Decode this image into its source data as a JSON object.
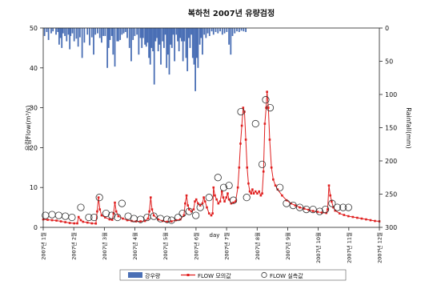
{
  "chart_data": {
    "type": "bar+line+scatter",
    "title": "복하천 2007년 유량검정",
    "xlabel": "day",
    "ylabel": "유량Flow(m³/s)",
    "y2label": "Rainfall(mm)",
    "ylim": [
      0,
      50
    ],
    "y2lim": [
      300,
      0
    ],
    "yticks": [
      "0",
      "10",
      "20",
      "30",
      "40",
      "50"
    ],
    "y2ticks": [
      "0",
      "50",
      "100",
      "150",
      "200",
      "250",
      "300"
    ],
    "xticks": [
      "2007년 1월",
      "2007년 2월",
      "2007년 3월",
      "2007년 4월",
      "2007년 5월",
      "2007년 6월",
      "2007년 7월",
      "2007년 8월",
      "2007년 9월",
      "2007년 10월",
      "2007년 11월",
      "2007년 12월"
    ],
    "legend_placement": "bottom",
    "grid": false,
    "colors": {
      "rainfall": "#4a6fb5",
      "simulated": "#e02020",
      "observed": "#333333"
    },
    "series": [
      {
        "name": "강우량",
        "kind": "bar",
        "axis": "right",
        "points": [
          [
            0.3,
            12
          ],
          [
            0.8,
            6
          ],
          [
            1.2,
            18
          ],
          [
            1.8,
            8
          ],
          [
            2.2,
            5
          ],
          [
            2.9,
            10
          ],
          [
            3.3,
            6
          ],
          [
            3.6,
            25
          ],
          [
            3.9,
            15
          ],
          [
            4.2,
            30
          ],
          [
            4.5,
            8
          ],
          [
            4.9,
            12
          ],
          [
            5.3,
            20
          ],
          [
            5.7,
            10
          ],
          [
            6.0,
            32
          ],
          [
            6.2,
            12
          ],
          [
            6.6,
            8
          ],
          [
            7.0,
            20
          ],
          [
            7.5,
            16
          ],
          [
            7.9,
            28
          ],
          [
            8.3,
            14
          ],
          [
            8.8,
            45
          ],
          [
            9.3,
            22
          ],
          [
            10.0,
            10
          ],
          [
            10.5,
            26
          ],
          [
            11.0,
            14
          ],
          [
            11.4,
            40
          ],
          [
            11.8,
            10
          ],
          [
            12.3,
            8
          ],
          [
            12.8,
            15
          ],
          [
            13.2,
            22
          ],
          [
            13.6,
            12
          ],
          [
            14.0,
            12
          ],
          [
            14.5,
            60
          ],
          [
            14.8,
            30
          ],
          [
            15.1,
            18
          ],
          [
            15.5,
            12
          ],
          [
            15.8,
            40
          ],
          [
            16.2,
            58
          ],
          [
            16.7,
            20
          ],
          [
            17.0,
            20
          ],
          [
            17.4,
            18
          ],
          [
            17.8,
            10
          ],
          [
            18.2,
            8
          ],
          [
            18.6,
            6
          ],
          [
            19.0,
            15
          ],
          [
            19.5,
            30
          ],
          [
            19.9,
            50
          ],
          [
            20.3,
            18
          ],
          [
            20.7,
            12
          ],
          [
            21.2,
            10
          ],
          [
            21.6,
            40
          ],
          [
            22.0,
            15
          ],
          [
            22.3,
            30
          ],
          [
            22.6,
            15
          ],
          [
            23.0,
            25
          ],
          [
            23.3,
            28
          ],
          [
            23.6,
            22
          ],
          [
            23.9,
            45
          ],
          [
            24.2,
            55
          ],
          [
            24.5,
            30
          ],
          [
            24.8,
            35
          ],
          [
            25.1,
            85
          ],
          [
            25.4,
            20
          ],
          [
            25.7,
            15
          ],
          [
            26.0,
            35
          ],
          [
            26.3,
            25
          ],
          [
            26.6,
            55
          ],
          [
            27.0,
            20
          ],
          [
            27.3,
            30
          ],
          [
            27.6,
            10
          ],
          [
            27.9,
            60
          ],
          [
            28.2,
            40
          ],
          [
            28.5,
            70
          ],
          [
            28.8,
            25
          ],
          [
            29.1,
            30
          ],
          [
            29.4,
            10
          ],
          [
            29.7,
            50
          ],
          [
            30.1,
            10
          ],
          [
            30.4,
            20
          ],
          [
            30.7,
            35
          ],
          [
            31.0,
            15
          ],
          [
            31.3,
            20
          ],
          [
            31.6,
            50
          ],
          [
            31.9,
            20
          ],
          [
            32.3,
            45
          ],
          [
            32.6,
            65
          ],
          [
            32.9,
            15
          ],
          [
            33.2,
            30
          ],
          [
            33.5,
            10
          ],
          [
            33.8,
            45
          ],
          [
            34.1,
            55
          ],
          [
            34.4,
            95
          ],
          [
            34.7,
            45
          ],
          [
            35.0,
            60
          ],
          [
            35.4,
            25
          ],
          [
            35.7,
            15
          ],
          [
            36.0,
            40
          ],
          [
            36.4,
            10
          ],
          [
            36.8,
            15
          ],
          [
            37.2,
            8
          ],
          [
            37.6,
            12
          ],
          [
            38.1,
            5
          ],
          [
            38.5,
            10
          ],
          [
            39.0,
            6
          ],
          [
            39.5,
            8
          ],
          [
            40.0,
            5
          ],
          [
            40.5,
            10
          ],
          [
            41.0,
            8
          ],
          [
            41.5,
            6
          ],
          [
            42.0,
            25
          ],
          [
            42.4,
            40
          ],
          [
            42.8,
            12
          ],
          [
            43.3,
            8
          ],
          [
            43.8,
            5
          ],
          [
            44.3,
            6
          ],
          [
            44.8,
            4
          ],
          [
            45.3,
            5
          ],
          [
            45.8,
            6
          ]
        ]
      },
      {
        "name": "FLOW 모의값",
        "kind": "line",
        "axis": "left",
        "points": [
          [
            0,
            2.0
          ],
          [
            1,
            1.9
          ],
          [
            2,
            1.8
          ],
          [
            3,
            1.7
          ],
          [
            4,
            1.5
          ],
          [
            5,
            1.3
          ],
          [
            6,
            1.1
          ],
          [
            7,
            1.0
          ],
          [
            7.7,
            1.0
          ],
          [
            8.0,
            2.6
          ],
          [
            8.5,
            1.8
          ],
          [
            9,
            1.4
          ],
          [
            10,
            1.2
          ],
          [
            11,
            1.0
          ],
          [
            11.9,
            0.95
          ],
          [
            12.2,
            4.0
          ],
          [
            12.5,
            7.5
          ],
          [
            12.8,
            4.5
          ],
          [
            13.2,
            3.0
          ],
          [
            14,
            2.5
          ],
          [
            15,
            2.0
          ],
          [
            15.6,
            1.9
          ],
          [
            15.9,
            3.5
          ],
          [
            16.2,
            6.2
          ],
          [
            16.5,
            4.0
          ],
          [
            17,
            2.8
          ],
          [
            18,
            2.2
          ],
          [
            19,
            1.8
          ],
          [
            20,
            1.6
          ],
          [
            21,
            1.5
          ],
          [
            22,
            1.5
          ],
          [
            23,
            1.6
          ],
          [
            23.7,
            2.2
          ],
          [
            24.0,
            4.0
          ],
          [
            24.3,
            7.5
          ],
          [
            24.6,
            4.5
          ],
          [
            25,
            3.0
          ],
          [
            26,
            2.0
          ],
          [
            27,
            1.6
          ],
          [
            28,
            1.4
          ],
          [
            29,
            1.5
          ],
          [
            30,
            1.8
          ],
          [
            31,
            2.0
          ],
          [
            31.8,
            3.0
          ],
          [
            32.1,
            6.0
          ],
          [
            32.4,
            8.0
          ],
          [
            32.7,
            5.5
          ],
          [
            33,
            4.5
          ],
          [
            33.5,
            4.0
          ],
          [
            34,
            4.5
          ],
          [
            34.3,
            6.5
          ],
          [
            34.6,
            7.0
          ],
          [
            35,
            6.0
          ],
          [
            35.5,
            5.5
          ],
          [
            36,
            6.0
          ],
          [
            36.3,
            7.5
          ],
          [
            36.6,
            6.5
          ],
          [
            37,
            5.0
          ],
          [
            37.5,
            3.5
          ],
          [
            38,
            3.0
          ],
          [
            38.3,
            3.5
          ],
          [
            38.5,
            10.0
          ],
          [
            38.8,
            8.0
          ],
          [
            39.2,
            7.0
          ],
          [
            39.6,
            6.0
          ],
          [
            40,
            6.5
          ],
          [
            40.4,
            9.0
          ],
          [
            40.7,
            7.5
          ],
          [
            41,
            6.5
          ],
          [
            41.4,
            7.5
          ],
          [
            41.7,
            8.5
          ],
          [
            42,
            7.0
          ],
          [
            42.5,
            6.0
          ],
          [
            43,
            6.2
          ],
          [
            43.5,
            6.5
          ],
          [
            44,
            10.0
          ],
          [
            44.3,
            15.0
          ],
          [
            44.6,
            21.0
          ],
          [
            44.9,
            25.5
          ],
          [
            45.2,
            30.0
          ],
          [
            45.5,
            29.0
          ],
          [
            45.8,
            22.0
          ],
          [
            46.1,
            15.0
          ],
          [
            46.4,
            11.0
          ],
          [
            46.7,
            9.0
          ],
          [
            47,
            8.5
          ],
          [
            47.3,
            9.5
          ],
          [
            47.6,
            8.5
          ],
          [
            48,
            9.0
          ],
          [
            48.4,
            8.5
          ],
          [
            48.8,
            9.0
          ],
          [
            49.2,
            8.0
          ],
          [
            49.5,
            8.5
          ],
          [
            49.8,
            14.0
          ],
          [
            50.1,
            26.0
          ],
          [
            50.4,
            30.0
          ],
          [
            50.6,
            34.0
          ],
          [
            50.9,
            30.0
          ],
          [
            51.2,
            22.0
          ],
          [
            51.6,
            15.0
          ],
          [
            52,
            12.0
          ],
          [
            52.5,
            10.5
          ],
          [
            53,
            9.5
          ],
          [
            54,
            8.0
          ],
          [
            55,
            6.8
          ],
          [
            56,
            6.0
          ],
          [
            57,
            5.5
          ],
          [
            58,
            5.0
          ],
          [
            59,
            4.7
          ],
          [
            60,
            4.4
          ],
          [
            61,
            4.1
          ],
          [
            62,
            3.9
          ],
          [
            63,
            3.7
          ],
          [
            64,
            3.6
          ],
          [
            64.3,
            4.5
          ],
          [
            64.6,
            10.5
          ],
          [
            64.9,
            8.0
          ],
          [
            65.2,
            6.5
          ],
          [
            65.6,
            5.0
          ],
          [
            66,
            4.2
          ],
          [
            67,
            3.5
          ],
          [
            68,
            3.1
          ],
          [
            69,
            2.8
          ],
          [
            70,
            2.6
          ],
          [
            71,
            2.4
          ],
          [
            72,
            2.2
          ],
          [
            73,
            2.0
          ],
          [
            74,
            1.8
          ],
          [
            75,
            1.6
          ],
          [
            76,
            1.5
          ]
        ]
      },
      {
        "name": "FLOW 실측값",
        "kind": "scatter",
        "axis": "left",
        "points": [
          [
            0.5,
            3.0
          ],
          [
            2.0,
            3.2
          ],
          [
            3.5,
            3.0
          ],
          [
            5,
            2.8
          ],
          [
            6.5,
            2.5
          ],
          [
            8.5,
            5.0
          ],
          [
            10.3,
            2.5
          ],
          [
            11.5,
            2.5
          ],
          [
            12.7,
            7.5
          ],
          [
            14.2,
            3.5
          ],
          [
            15.5,
            3.0
          ],
          [
            16.8,
            2.5
          ],
          [
            17.8,
            6.0
          ],
          [
            19.2,
            2.8
          ],
          [
            20.5,
            2.2
          ],
          [
            22,
            2.0
          ],
          [
            23.5,
            2.5
          ],
          [
            25,
            2.8
          ],
          [
            26.5,
            2.2
          ],
          [
            28,
            2.0
          ],
          [
            29,
            1.8
          ],
          [
            30.5,
            2.5
          ],
          [
            31.5,
            3.5
          ],
          [
            33,
            4.0
          ],
          [
            34.5,
            3.0
          ],
          [
            35.5,
            5.0
          ],
          [
            37.5,
            7.5
          ],
          [
            39.5,
            12.5
          ],
          [
            40.8,
            10.0
          ],
          [
            42,
            10.5
          ],
          [
            43,
            6.8
          ],
          [
            44.7,
            29.0
          ],
          [
            46,
            7.5
          ],
          [
            48,
            26.0
          ],
          [
            49.5,
            15.8
          ],
          [
            50.3,
            32.0
          ],
          [
            51.3,
            30.0
          ],
          [
            53.5,
            10.0
          ],
          [
            55,
            6.0
          ],
          [
            56.5,
            5.5
          ],
          [
            58,
            5.0
          ],
          [
            59.5,
            4.5
          ],
          [
            61,
            4.5
          ],
          [
            62.5,
            4.0
          ],
          [
            63.8,
            4.5
          ],
          [
            65.3,
            6.0
          ],
          [
            66.5,
            5.0
          ],
          [
            67.8,
            5.0
          ],
          [
            69,
            5.0
          ]
        ]
      }
    ]
  }
}
